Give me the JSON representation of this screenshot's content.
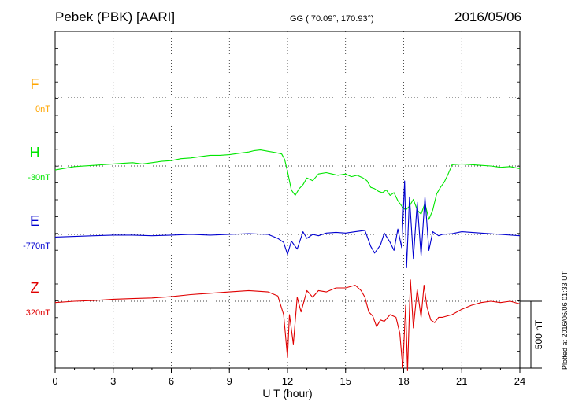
{
  "header": {
    "title": "Pebek (PBK)  [AARI]",
    "coords": "GG ( 70.09°, 170.93°)",
    "date": "2016/05/06"
  },
  "footer": {
    "plotted": "Plotted at 2016/06/06 01:33 UT"
  },
  "chart_data": {
    "type": "line",
    "xlabel": "U T (hour)",
    "xlim": [
      0,
      24
    ],
    "xticks": [
      "0",
      "3",
      "6",
      "9",
      "12",
      "15",
      "18",
      "21",
      "24"
    ],
    "scale_label": "500 nT",
    "scale_nT": 500,
    "grid": true,
    "colors": {
      "F": "#ffa500",
      "H": "#00e600",
      "E": "#0000d0",
      "Z": "#e00000"
    },
    "channels": [
      {
        "name": "F",
        "baseline": "0nT",
        "color": "#ffa500",
        "x": [],
        "y": []
      },
      {
        "name": "H",
        "baseline": "-30nT",
        "color": "#00e600",
        "x": [
          0,
          1,
          2,
          3,
          3.5,
          4,
          4.5,
          5,
          5.5,
          6,
          6.5,
          7,
          7.5,
          8,
          8.5,
          9,
          9.5,
          10,
          10.3,
          10.6,
          11,
          11.4,
          11.7,
          11.85,
          12,
          12.2,
          12.4,
          12.6,
          12.8,
          13,
          13.3,
          13.6,
          14,
          14.3,
          14.6,
          15,
          15.3,
          15.6,
          15.9,
          16.1,
          16.3,
          16.5,
          16.7,
          16.9,
          17.1,
          17.3,
          17.5,
          17.7,
          17.9,
          18.1,
          18.3,
          18.5,
          18.7,
          18.9,
          19.1,
          19.3,
          19.5,
          19.7,
          19.9,
          20.1,
          20.3,
          20.5,
          21,
          21.5,
          22,
          22.5,
          23,
          23.5,
          24
        ],
        "y": [
          -30,
          -5,
          5,
          15,
          20,
          25,
          15,
          25,
          35,
          40,
          55,
          60,
          70,
          80,
          80,
          85,
          95,
          105,
          115,
          120,
          110,
          100,
          90,
          50,
          -40,
          -180,
          -220,
          -170,
          -140,
          -90,
          -110,
          -60,
          -50,
          -60,
          -70,
          -60,
          -80,
          -70,
          -90,
          -110,
          -160,
          -170,
          -190,
          -200,
          -180,
          -220,
          -200,
          -260,
          -300,
          -330,
          -300,
          -250,
          -330,
          -360,
          -280,
          -400,
          -330,
          -210,
          -160,
          -120,
          -60,
          10,
          15,
          10,
          5,
          0,
          -10,
          -5,
          -20
        ]
      },
      {
        "name": "E",
        "baseline": "-770nT",
        "color": "#0000d0",
        "x": [
          0,
          1,
          2,
          3,
          4,
          5,
          6,
          7,
          8,
          9,
          10,
          11,
          11.5,
          11.8,
          12,
          12.2,
          12.5,
          12.8,
          13,
          13.3,
          13.6,
          14,
          14.5,
          15,
          15.5,
          16,
          16.3,
          16.5,
          16.8,
          17,
          17.3,
          17.5,
          17.7,
          17.9,
          18.05,
          18.15,
          18.3,
          18.5,
          18.7,
          18.9,
          19.1,
          19.3,
          19.5,
          19.8,
          20,
          20.5,
          21,
          22,
          23,
          24
        ],
        "y": [
          -20,
          -15,
          -10,
          -5,
          -5,
          -10,
          -5,
          0,
          -5,
          0,
          5,
          0,
          -30,
          -60,
          -150,
          -50,
          -110,
          20,
          -30,
          0,
          -10,
          10,
          15,
          10,
          20,
          30,
          -90,
          -140,
          -80,
          10,
          -60,
          -120,
          40,
          -100,
          400,
          -250,
          280,
          -180,
          240,
          -160,
          280,
          -120,
          20,
          -10,
          0,
          5,
          20,
          10,
          0,
          -10
        ]
      },
      {
        "name": "Z",
        "baseline": "320nT",
        "color": "#e00000",
        "x": [
          0,
          1,
          2,
          3,
          4,
          5,
          6,
          7,
          8,
          9,
          10,
          11,
          11.5,
          11.8,
          12,
          12.1,
          12.3,
          12.5,
          12.7,
          13,
          13.3,
          13.6,
          14,
          14.5,
          15,
          15.5,
          15.8,
          16,
          16.2,
          16.4,
          16.6,
          16.8,
          17,
          17.3,
          17.6,
          17.8,
          17.95,
          18.1,
          18.2,
          18.35,
          18.5,
          18.7,
          18.9,
          19.05,
          19.2,
          19.4,
          19.6,
          19.8,
          20,
          20.5,
          21,
          21.5,
          22,
          22.5,
          23,
          23.5,
          24
        ],
        "y": [
          -10,
          0,
          5,
          15,
          20,
          25,
          35,
          50,
          60,
          70,
          80,
          70,
          40,
          -100,
          -420,
          -100,
          -320,
          30,
          -80,
          80,
          30,
          80,
          70,
          100,
          100,
          120,
          80,
          30,
          -80,
          -110,
          -190,
          -140,
          -150,
          -100,
          -120,
          -240,
          -500,
          -30,
          -520,
          160,
          -200,
          90,
          -120,
          120,
          -40,
          -140,
          -160,
          -120,
          -120,
          -100,
          -60,
          -30,
          -10,
          0,
          -10,
          0,
          -20
        ]
      }
    ]
  }
}
